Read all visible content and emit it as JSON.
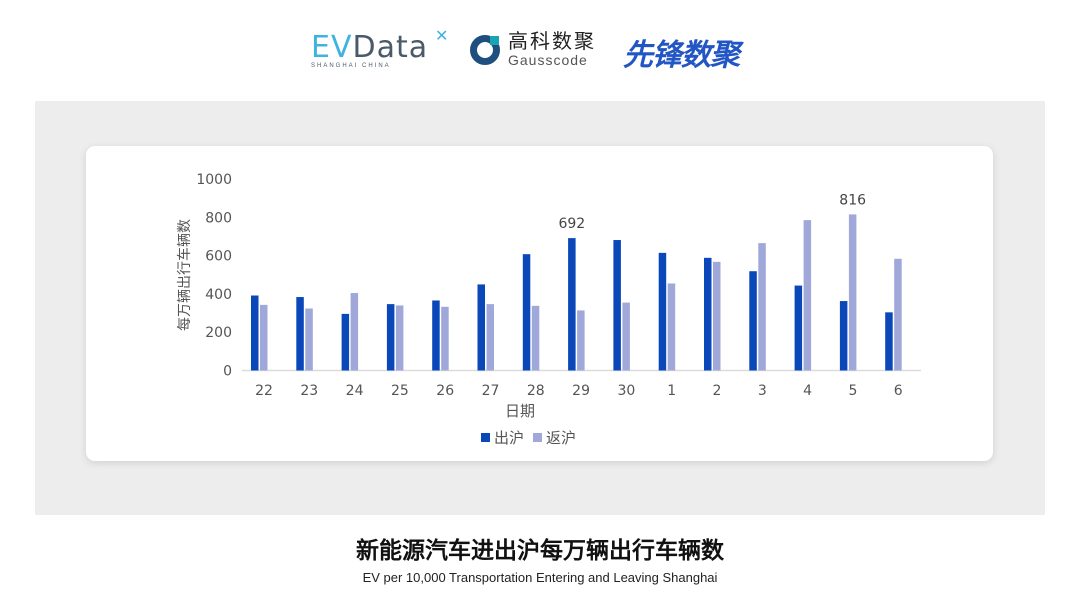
{
  "logos": {
    "evdata": {
      "word_a": "EV",
      "word_b": "Data",
      "sub": "SHANGHAI CHINA"
    },
    "gausscode": {
      "cn": "高科数聚",
      "en": "Gausscode"
    },
    "xianfeng": {
      "cn": "先锋数聚"
    }
  },
  "footer": {
    "title": "新能源汽车进出沪每万辆出行车辆数",
    "subtitle": "EV per 10,000 Transportation Entering and Leaving Shanghai"
  },
  "chart_data": {
    "type": "bar",
    "title": "",
    "xlabel": "日期",
    "ylabel": "每万辆出行车辆数",
    "ylim": [
      0,
      1000
    ],
    "yticks": [
      0,
      200,
      400,
      600,
      800,
      1000
    ],
    "grid": false,
    "legend": "bottom",
    "categories": [
      "22",
      "23",
      "24",
      "25",
      "26",
      "27",
      "28",
      "29",
      "30",
      "1",
      "2",
      "3",
      "4",
      "5",
      "6"
    ],
    "series": [
      {
        "name": "出沪",
        "color": "#0a47b8",
        "values": [
          392,
          384,
          296,
          347,
          366,
          450,
          608,
          692,
          682,
          615,
          589,
          519,
          444,
          363,
          304
        ]
      },
      {
        "name": "返沪",
        "color": "#9fa8d8",
        "values": [
          343,
          324,
          405,
          340,
          333,
          347,
          338,
          314,
          355,
          455,
          568,
          666,
          786,
          816,
          584
        ]
      }
    ],
    "data_labels": [
      {
        "series": 0,
        "category": "29",
        "text": "692"
      },
      {
        "series": 1,
        "category": "5",
        "text": "816"
      }
    ]
  }
}
